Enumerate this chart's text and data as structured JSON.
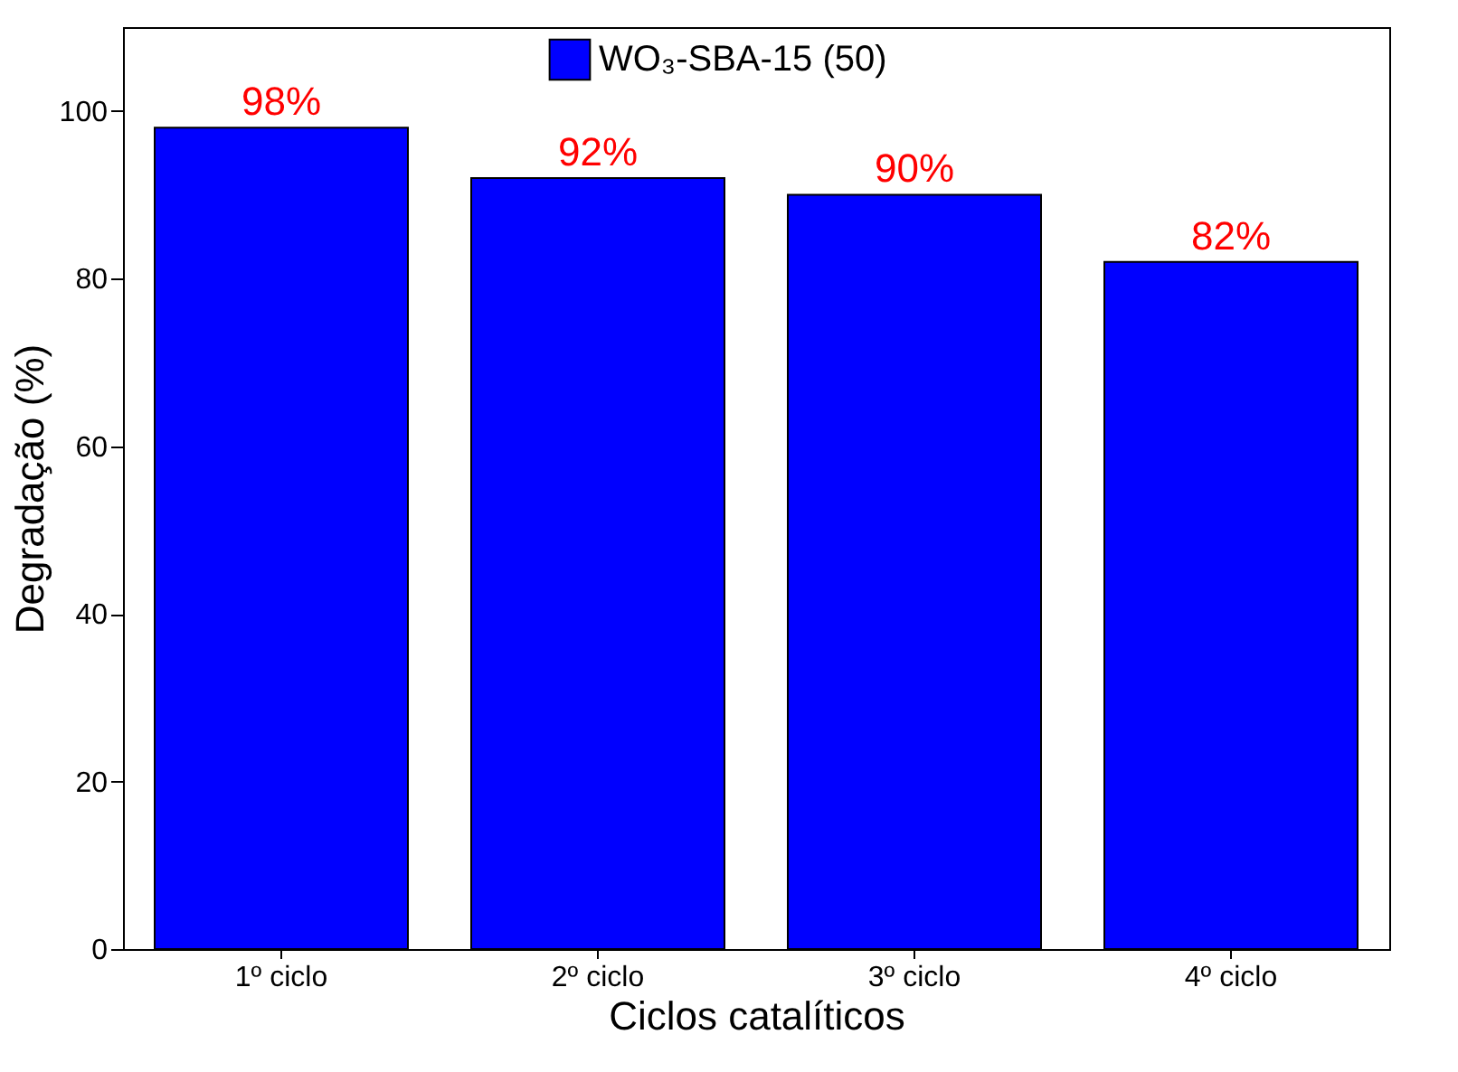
{
  "chart_data": {
    "type": "bar",
    "xlabel": "Ciclos catalíticos",
    "ylabel": "Degradação (%)",
    "categories": [
      "1º ciclo",
      "2º ciclo",
      "3º ciclo",
      "4º ciclo"
    ],
    "series": [
      {
        "name": "WO₃-SBA-15 (50)",
        "color": "#0000ff",
        "values": [
          98,
          92,
          90,
          82
        ],
        "value_labels": [
          "98%",
          "92%",
          "90%",
          "82%"
        ]
      }
    ],
    "ylim": [
      0,
      110
    ],
    "yticks": [
      0,
      20,
      40,
      60,
      80,
      100
    ],
    "grid": false,
    "legend": "top"
  }
}
